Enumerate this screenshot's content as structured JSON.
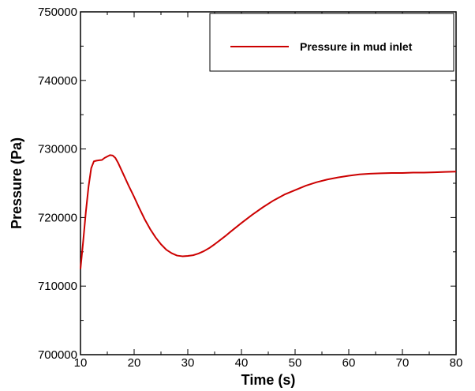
{
  "chart_data": {
    "type": "line",
    "title": "",
    "xlabel": "Time (s)",
    "ylabel": "Pressure (Pa)",
    "xlim": [
      10,
      80
    ],
    "ylim": [
      700000,
      750000
    ],
    "xticks": [
      10,
      20,
      30,
      40,
      50,
      60,
      70,
      80
    ],
    "yticks": [
      700000,
      710000,
      720000,
      730000,
      740000,
      750000
    ],
    "xtick_labels": [
      "10",
      "20",
      "30",
      "40",
      "50",
      "60",
      "70",
      "80"
    ],
    "ytick_labels": [
      "700000",
      "710000",
      "720000",
      "730000",
      "740000",
      "750000"
    ],
    "grid": false,
    "legend_position": "top-right",
    "series": [
      {
        "name": "Pressure in mud inlet",
        "color": "#cc0000",
        "x": [
          10.0,
          10.5,
          11.0,
          11.5,
          12.0,
          12.5,
          13.0,
          13.5,
          14.0,
          14.5,
          15.0,
          15.5,
          16.0,
          16.5,
          17.0,
          18.0,
          19.0,
          20.0,
          21.0,
          22.0,
          23.0,
          24.0,
          25.0,
          26.0,
          27.0,
          28.0,
          29.0,
          30.0,
          31.0,
          32.0,
          33.0,
          34.0,
          35.0,
          36.0,
          37.0,
          38.0,
          40.0,
          42.0,
          44.0,
          46.0,
          48.0,
          50.0,
          52.0,
          54.0,
          56.0,
          58.0,
          60.0,
          62.0,
          64.0,
          66.0,
          68.0,
          70.0,
          72.0,
          74.0,
          76.0,
          78.0,
          80.0
        ],
        "y": [
          712500,
          716500,
          720800,
          724500,
          727200,
          728200,
          728300,
          728350,
          728400,
          728700,
          728900,
          729100,
          729050,
          728700,
          728000,
          726300,
          724600,
          723000,
          721300,
          719700,
          718300,
          717100,
          716100,
          715300,
          714800,
          714450,
          714350,
          714400,
          714500,
          714750,
          715100,
          715550,
          716100,
          716700,
          717300,
          717950,
          719200,
          720400,
          721500,
          722500,
          723350,
          724000,
          724650,
          725150,
          725550,
          725850,
          726100,
          726300,
          726400,
          726450,
          726500,
          726500,
          726550,
          726550,
          726600,
          726650,
          726700
        ]
      }
    ]
  }
}
